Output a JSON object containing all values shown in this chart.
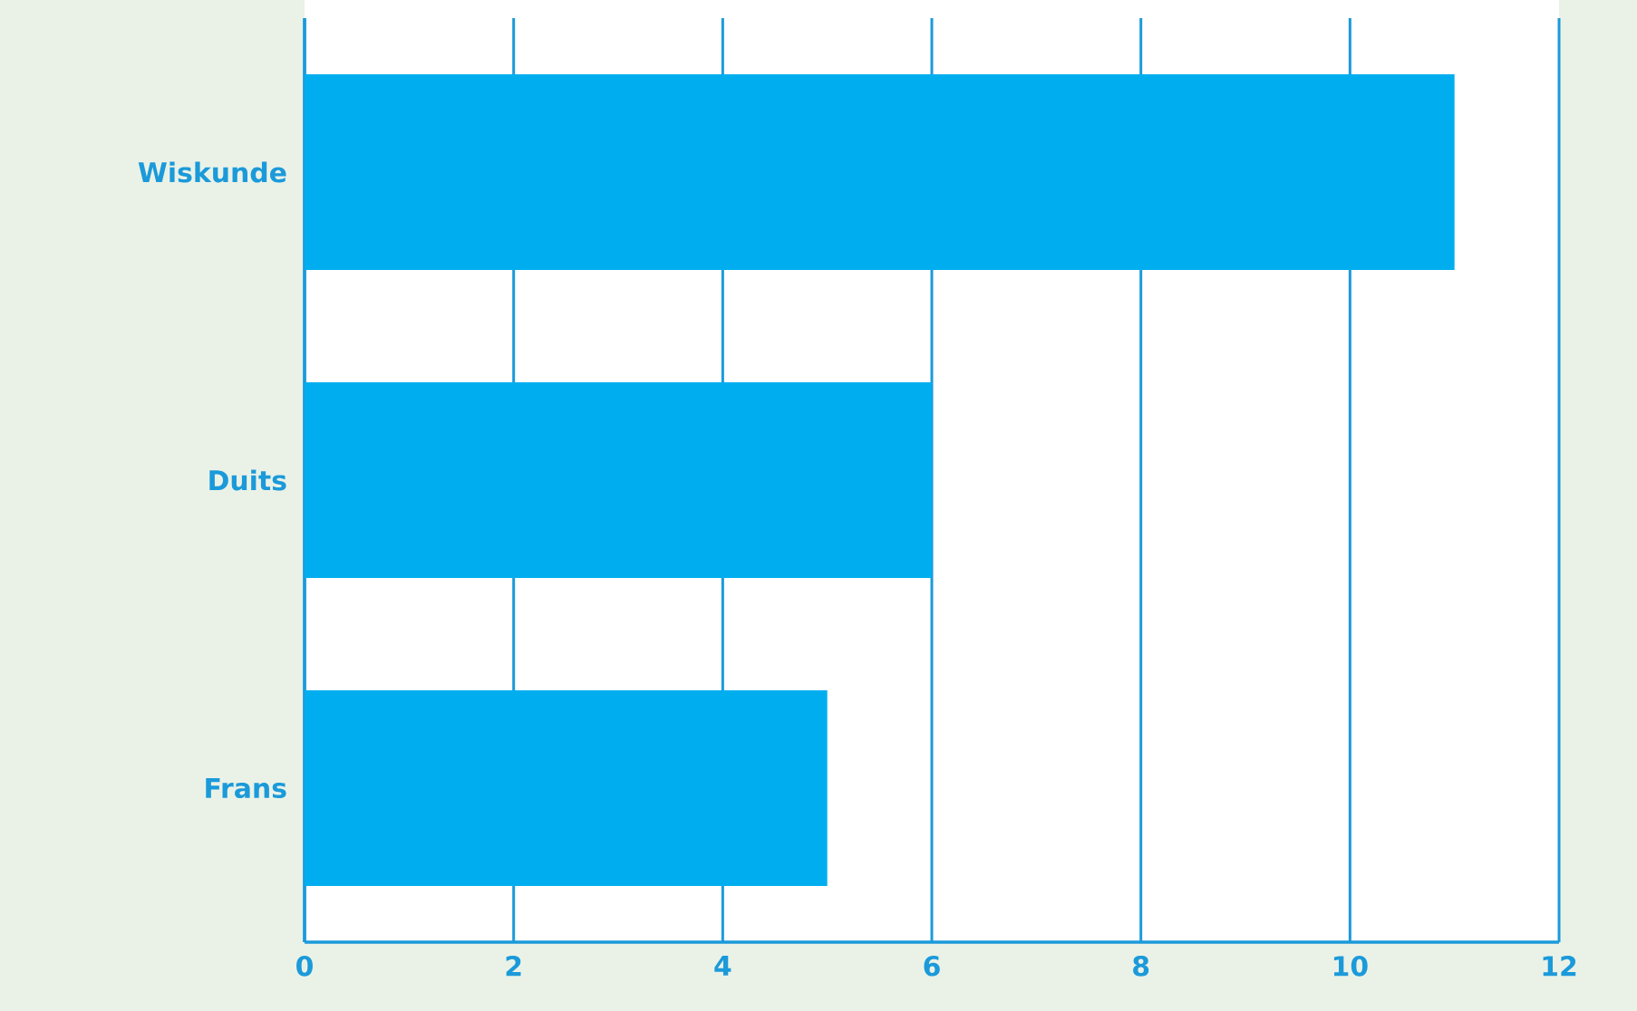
{
  "chart_data": {
    "type": "bar",
    "orientation": "horizontal",
    "categories": [
      "Wiskunde",
      "Duits",
      "Frans"
    ],
    "values": [
      11,
      6,
      5
    ],
    "color": "#00aeef",
    "xlim": [
      0,
      12
    ],
    "xticks": [
      0,
      2,
      4,
      6,
      8,
      10,
      12
    ],
    "grid": "x"
  }
}
